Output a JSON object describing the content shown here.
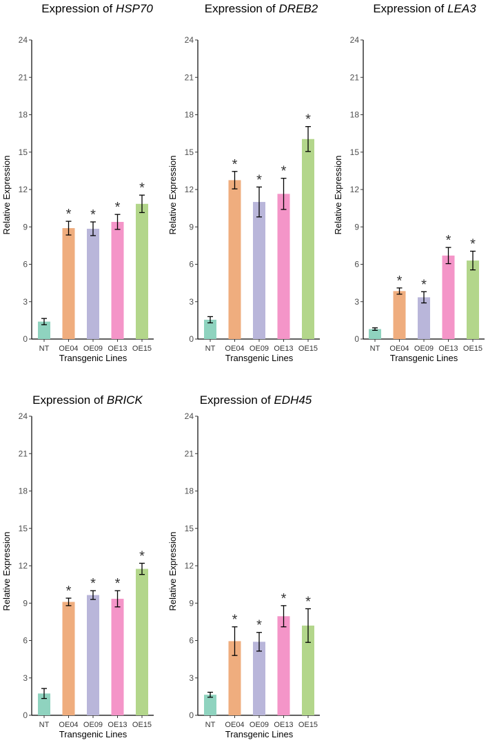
{
  "chart_data": [
    {
      "type": "bar",
      "title_prefix": "Expression of ",
      "gene": "HSP70",
      "xlabel": "Transgenic Lines",
      "ylabel": "Relative Expression",
      "categories": [
        "NT",
        "OE04",
        "OE09",
        "OE13",
        "OE15"
      ],
      "values": [
        1.4,
        8.9,
        8.85,
        9.4,
        10.85
      ],
      "errors": [
        0.25,
        0.55,
        0.55,
        0.6,
        0.7
      ],
      "significant": [
        "",
        "*",
        "*",
        "*",
        "*"
      ],
      "ylim": [
        0,
        24
      ],
      "yticks": [
        "0",
        "3",
        "6",
        "9",
        "12",
        "15",
        "18",
        "21",
        "24"
      ],
      "colors": [
        "#8fd3bf",
        "#efad7e",
        "#b9b6da",
        "#f495c8",
        "#b3d68b"
      ]
    },
    {
      "type": "bar",
      "title_prefix": "Expression of ",
      "gene": "DREB2",
      "xlabel": "Transgenic Lines",
      "ylabel": "Relative Expression",
      "categories": [
        "NT",
        "OE04",
        "OE09",
        "OE13",
        "OE15"
      ],
      "values": [
        1.55,
        12.75,
        11.0,
        11.65,
        16.05
      ],
      "errors": [
        0.25,
        0.7,
        1.2,
        1.25,
        1.0
      ],
      "significant": [
        "",
        "*",
        "*",
        "*",
        "*"
      ],
      "ylim": [
        0,
        24
      ],
      "yticks": [
        "0",
        "3",
        "6",
        "9",
        "12",
        "15",
        "18",
        "21",
        "24"
      ],
      "colors": [
        "#8fd3bf",
        "#efad7e",
        "#b9b6da",
        "#f495c8",
        "#b3d68b"
      ]
    },
    {
      "type": "bar",
      "title_prefix": "Expression of ",
      "gene": "LEA3",
      "xlabel": "Transgenic Lines",
      "ylabel": "Relative Expression",
      "categories": [
        "NT",
        "OE04",
        "OE09",
        "OE13",
        "OE15"
      ],
      "values": [
        0.8,
        3.85,
        3.35,
        6.7,
        6.3
      ],
      "errors": [
        0.1,
        0.25,
        0.45,
        0.65,
        0.75
      ],
      "significant": [
        "",
        "*",
        "*",
        "*",
        "*"
      ],
      "ylim": [
        0,
        24
      ],
      "yticks": [
        "0",
        "3",
        "6",
        "9",
        "12",
        "15",
        "18",
        "21",
        "24"
      ],
      "colors": [
        "#8fd3bf",
        "#efad7e",
        "#b9b6da",
        "#f495c8",
        "#b3d68b"
      ]
    },
    {
      "type": "bar",
      "title_prefix": "Expression of ",
      "gene": "BRICK",
      "xlabel": "Transgenic Lines",
      "ylabel": "Relative Expression",
      "categories": [
        "NT",
        "OE04",
        "OE09",
        "OE13",
        "OE15"
      ],
      "values": [
        1.75,
        9.1,
        9.65,
        9.35,
        11.75
      ],
      "errors": [
        0.4,
        0.3,
        0.35,
        0.65,
        0.45
      ],
      "significant": [
        "",
        "*",
        "*",
        "*",
        "*"
      ],
      "ylim": [
        0,
        24
      ],
      "yticks": [
        "0",
        "3",
        "6",
        "9",
        "12",
        "15",
        "18",
        "21",
        "24"
      ],
      "colors": [
        "#8fd3bf",
        "#efad7e",
        "#b9b6da",
        "#f495c8",
        "#b3d68b"
      ]
    },
    {
      "type": "bar",
      "title_prefix": "Expression of ",
      "gene": "EDH45",
      "xlabel": "Transgenic Lines",
      "ylabel": "Relative Expression",
      "categories": [
        "NT",
        "OE04",
        "OE09",
        "OE13",
        "OE15"
      ],
      "values": [
        1.65,
        5.95,
        5.9,
        7.95,
        7.2
      ],
      "errors": [
        0.2,
        1.15,
        0.75,
        0.85,
        1.35
      ],
      "significant": [
        "",
        "*",
        "*",
        "*",
        "*"
      ],
      "ylim": [
        0,
        24
      ],
      "yticks": [
        "0",
        "3",
        "6",
        "9",
        "12",
        "15",
        "18",
        "21",
        "24"
      ],
      "colors": [
        "#8fd3bf",
        "#efad7e",
        "#b9b6da",
        "#f495c8",
        "#b3d68b"
      ]
    }
  ]
}
